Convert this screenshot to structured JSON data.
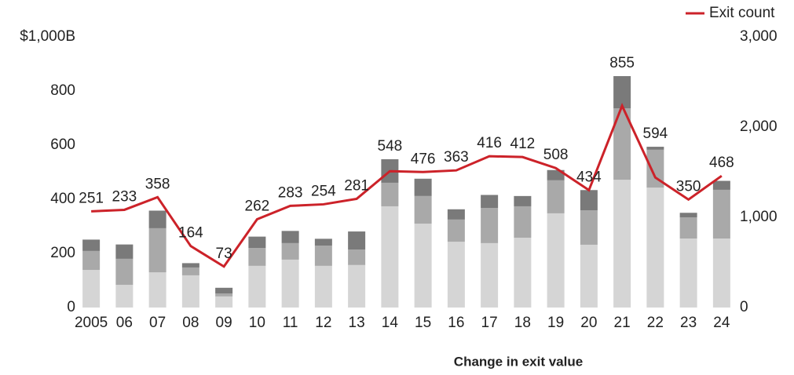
{
  "chart_data": {
    "type": "bar",
    "stacked": true,
    "x_label": "Change in exit value",
    "categories": [
      "2005",
      "06",
      "07",
      "08",
      "09",
      "10",
      "11",
      "12",
      "13",
      "14",
      "15",
      "16",
      "17",
      "18",
      "19",
      "20",
      "21",
      "22",
      "23",
      "24"
    ],
    "series": [
      {
        "color": "#d5d5d5",
        "values": [
          139,
          84,
          130,
          119,
          41,
          154,
          177,
          154,
          157,
          374,
          310,
          243,
          238,
          258,
          348,
          232,
          472,
          443,
          255,
          255
        ]
      },
      {
        "color": "#a9a9a9",
        "values": [
          70,
          96,
          163,
          29,
          11,
          66,
          61,
          75,
          57,
          87,
          102,
          82,
          130,
          116,
          122,
          127,
          264,
          140,
          78,
          180
        ]
      },
      {
        "color": "#7a7a7a",
        "values": [
          42,
          53,
          65,
          16,
          21,
          42,
          45,
          25,
          67,
          87,
          64,
          38,
          48,
          38,
          38,
          75,
          119,
          11,
          17,
          33
        ]
      },
      {
        "name": "Exit count",
        "type": "line",
        "axis": "y2",
        "color": "#cc2229",
        "values": [
          1066,
          1083,
          1223,
          681,
          454,
          978,
          1127,
          1144,
          1205,
          1511,
          1502,
          1520,
          1677,
          1668,
          1546,
          1301,
          2236,
          1441,
          1197,
          1459
        ]
      }
    ],
    "totals": [
      251,
      233,
      358,
      164,
      73,
      262,
      283,
      254,
      281,
      548,
      476,
      363,
      416,
      412,
      508,
      434,
      855,
      594,
      350,
      468
    ],
    "ylim": [
      0,
      1000
    ],
    "yticks": [
      0,
      200,
      400,
      600,
      800,
      {
        "value": 1000,
        "label": "$1,000B"
      }
    ],
    "y2lim": [
      0,
      3000
    ],
    "y2ticks": [
      0,
      {
        "value": 1000,
        "label": "1,000"
      },
      {
        "value": 2000,
        "label": "2,000"
      },
      {
        "value": 3000,
        "label": "3,000"
      }
    ],
    "legend": "top-right"
  }
}
